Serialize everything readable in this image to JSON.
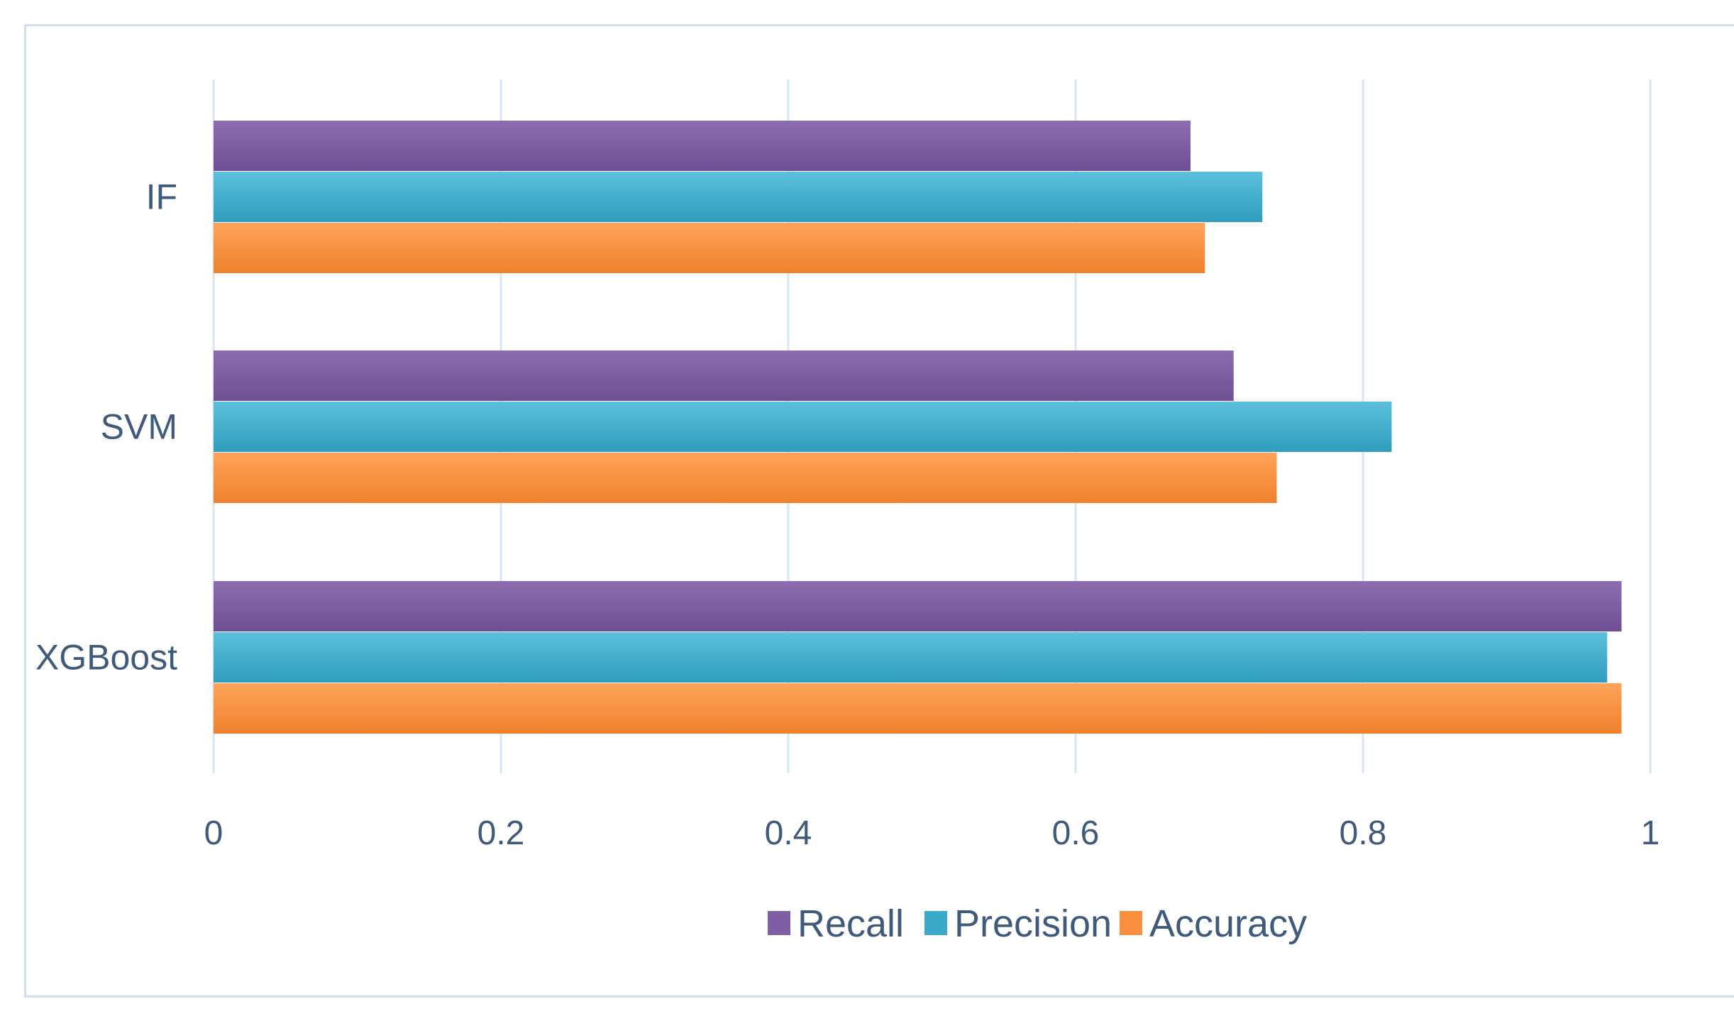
{
  "chart_data": {
    "type": "bar",
    "orientation": "horizontal",
    "categories": [
      "IF",
      "SVM",
      "XGBoost"
    ],
    "series": [
      {
        "name": "Recall",
        "values": [
          0.68,
          0.71,
          0.98
        ],
        "color": "#7f5fa3"
      },
      {
        "name": "Precision",
        "values": [
          0.73,
          0.82,
          0.97
        ],
        "color": "#3ba9c8"
      },
      {
        "name": "Accuracy",
        "values": [
          0.69,
          0.74,
          0.98
        ],
        "color": "#f88f3e"
      }
    ],
    "x_ticks": [
      "0",
      "0.2",
      "0.4",
      "0.6",
      "0.8",
      "1"
    ],
    "xlim": [
      0,
      1
    ],
    "grid": "vertical",
    "legend_position": "bottom"
  }
}
